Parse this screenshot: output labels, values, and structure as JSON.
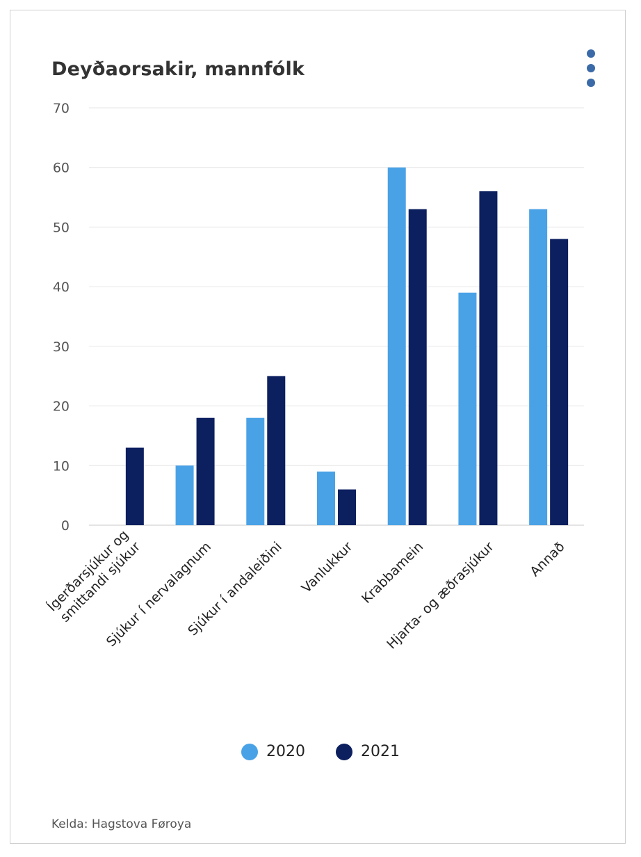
{
  "chart_data": {
    "type": "bar",
    "title": "Deyðaorsakir, mannfólk",
    "categories": [
      [
        "Ígerðarsjúkur og",
        "smittandi sjúkur"
      ],
      [
        "Sjúkur í nervalagnum"
      ],
      [
        "Sjúkur í andaleiðini"
      ],
      [
        "Vanlukkur"
      ],
      [
        "Krabbamein"
      ],
      [
        "Hjarta- og æðrasjúkur"
      ],
      [
        "Annað"
      ]
    ],
    "series": [
      {
        "name": "2020",
        "color": "#4aa2e6",
        "values": [
          0,
          10,
          18,
          9,
          60,
          39,
          53
        ]
      },
      {
        "name": "2021",
        "color": "#0c1f5f",
        "values": [
          13,
          18,
          25,
          6,
          53,
          56,
          48
        ]
      }
    ],
    "ylim": [
      0,
      70
    ],
    "yticks": [
      0,
      10,
      20,
      30,
      40,
      50,
      60,
      70
    ],
    "grid": true,
    "legend_position": "bottom"
  },
  "menu_icon": "three-dots-vertical-icon",
  "source": "Kelda: Hagstova Føroya"
}
